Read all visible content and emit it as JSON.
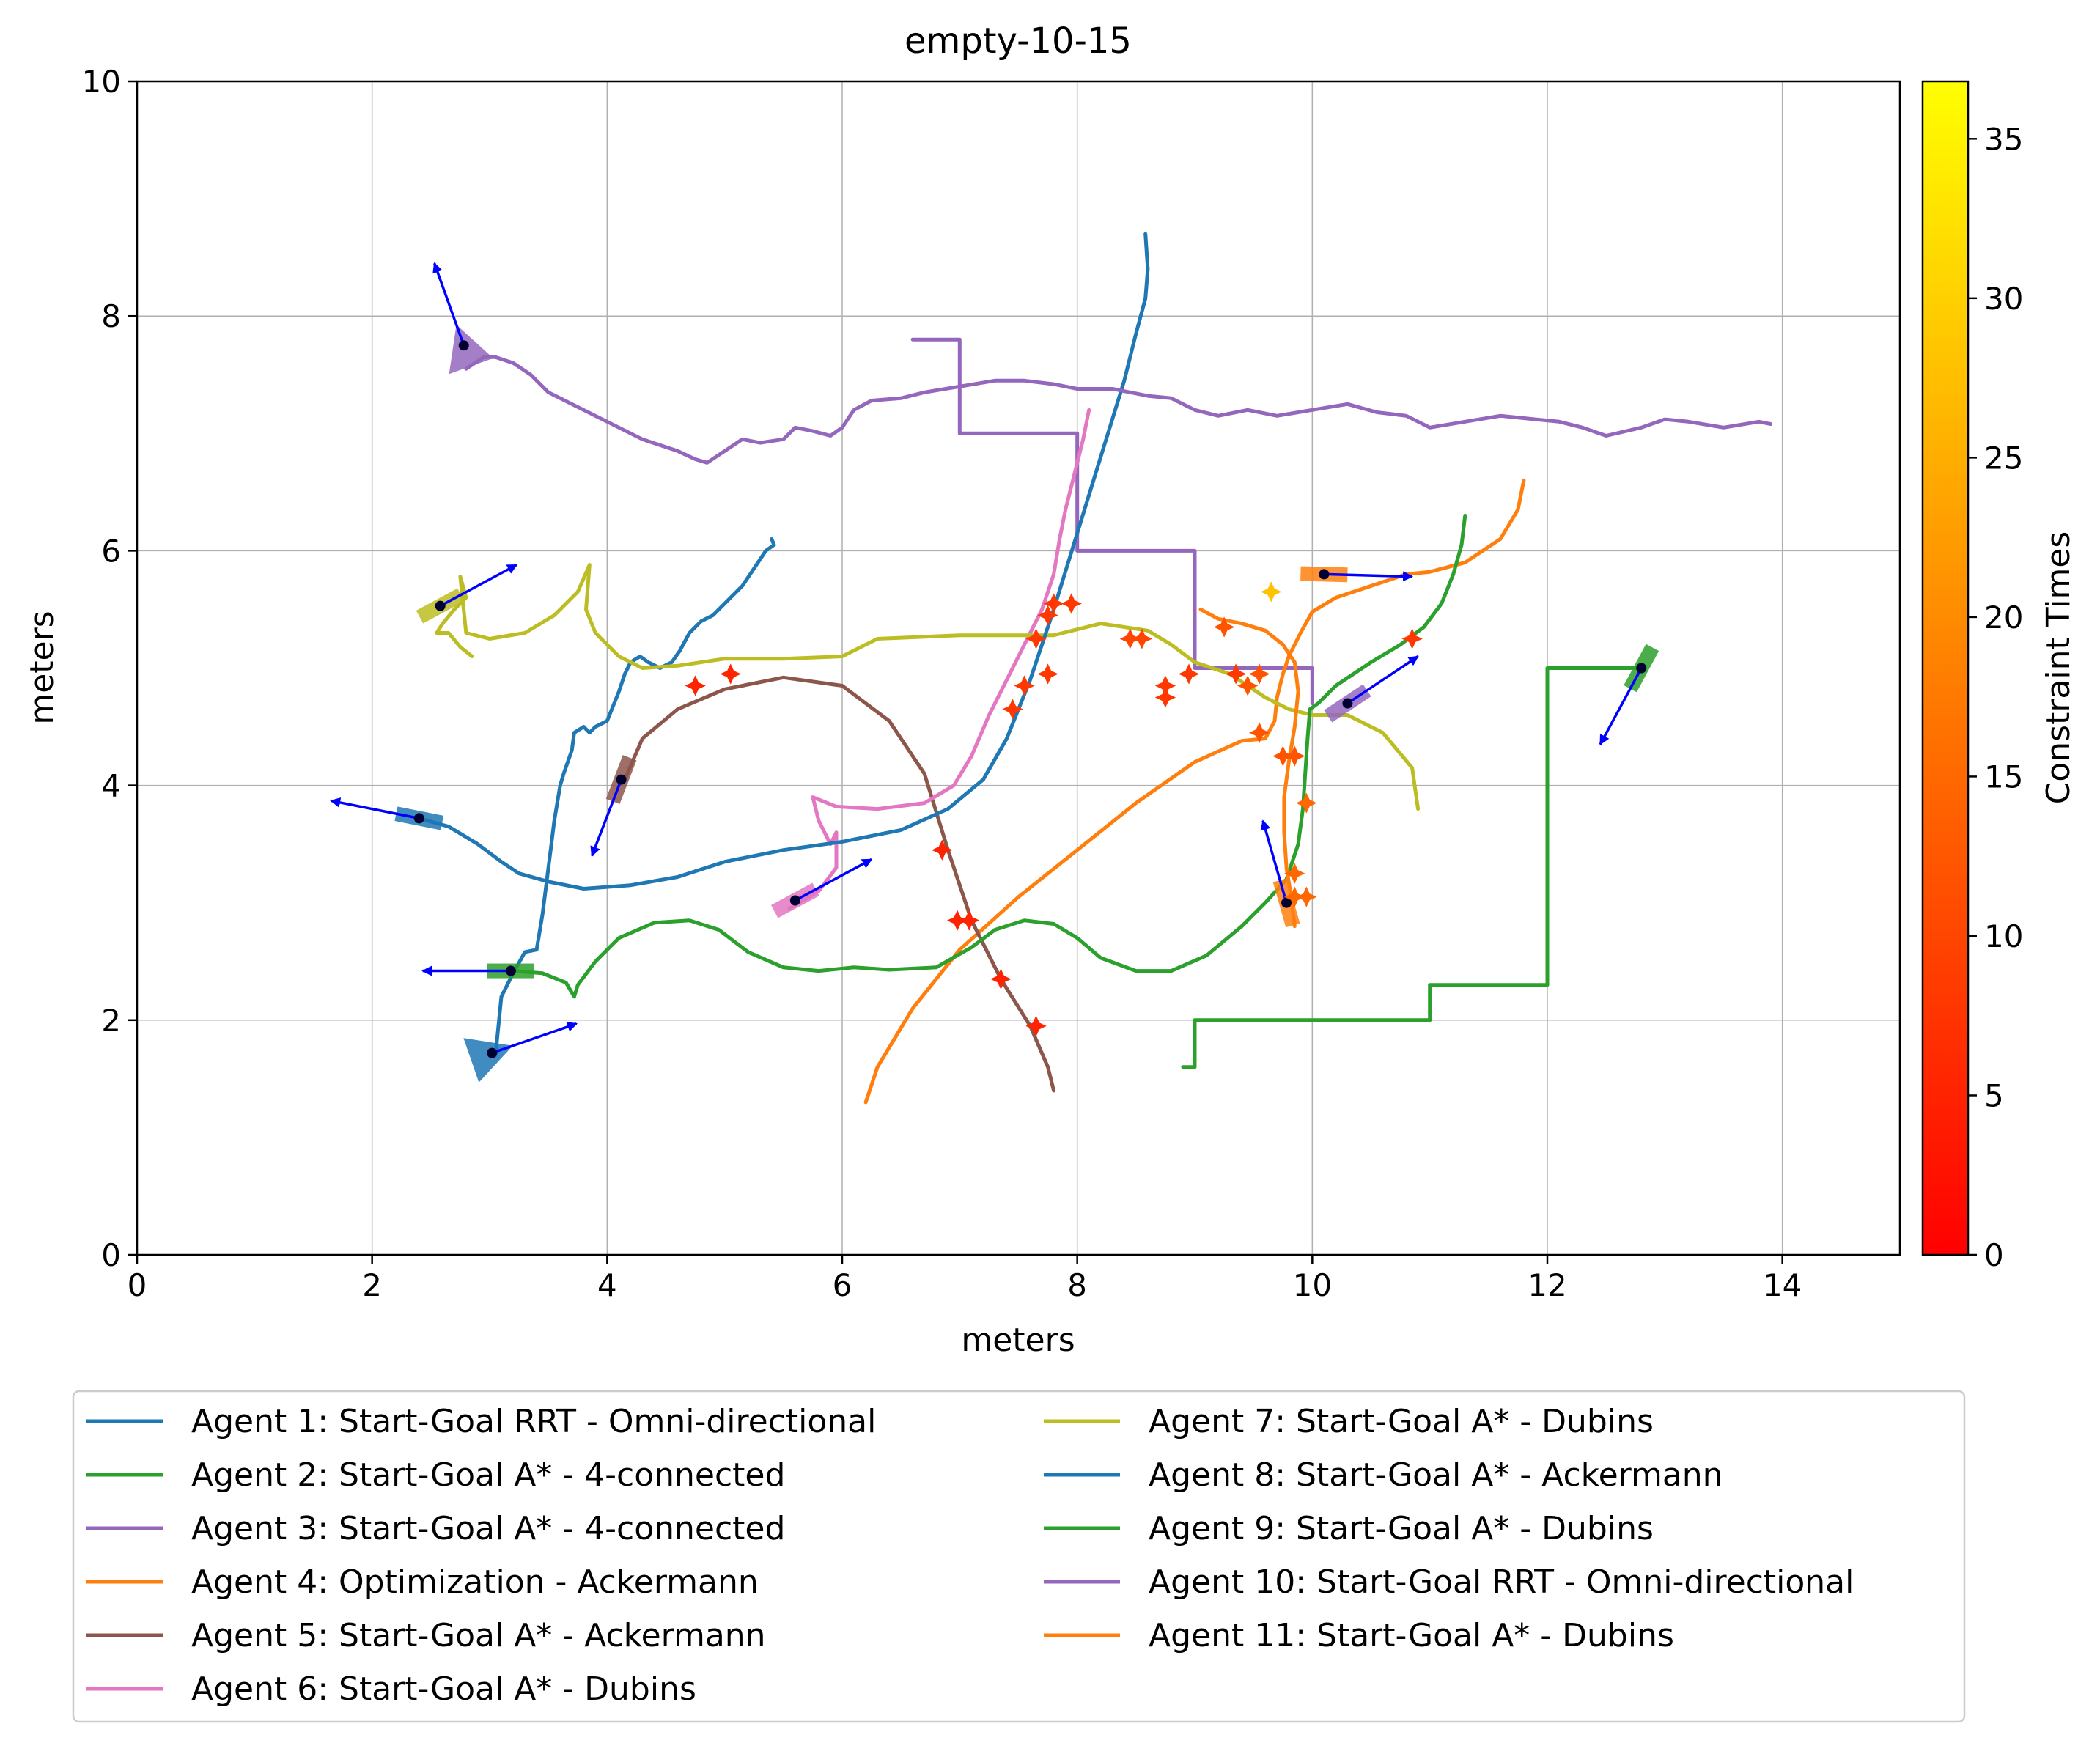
{
  "chart_data": {
    "type": "line",
    "title": "empty-10-15",
    "xlabel": "meters",
    "ylabel": "meters",
    "xlim": [
      0,
      15
    ],
    "ylim": [
      0,
      10
    ],
    "xticks": [
      0,
      2,
      4,
      6,
      8,
      10,
      12,
      14
    ],
    "yticks": [
      0,
      2,
      4,
      6,
      8,
      10
    ],
    "grid": true,
    "legend_position": "bottom",
    "colorbar": {
      "label": "Constraint Times",
      "range": [
        0,
        36.8
      ],
      "ticks": [
        0,
        5,
        10,
        15,
        20,
        25,
        30,
        35
      ],
      "colors": [
        "#ff0000",
        "#ff8000",
        "#ffff00"
      ]
    },
    "series": [
      {
        "name": "Agent 1: Start-Goal RRT - Omni-directional",
        "color": "#1f77b4",
        "x": [
          3.05,
          3.1,
          3.2,
          3.3,
          3.4,
          3.45,
          3.5,
          3.55,
          3.6,
          3.63,
          3.7,
          3.72,
          3.8,
          3.85,
          3.9,
          4.0,
          4.1,
          4.15,
          4.2,
          4.28,
          4.35,
          4.45,
          4.55,
          4.62,
          4.7,
          4.8,
          4.9,
          5.0,
          5.05,
          5.15,
          5.25,
          5.35,
          5.42,
          5.4
        ],
        "y": [
          1.7,
          2.2,
          2.4,
          2.58,
          2.6,
          2.9,
          3.3,
          3.7,
          4.0,
          4.1,
          4.3,
          4.45,
          4.5,
          4.45,
          4.5,
          4.55,
          4.8,
          4.95,
          5.05,
          5.1,
          5.05,
          5.0,
          5.05,
          5.15,
          5.3,
          5.4,
          5.45,
          5.55,
          5.6,
          5.7,
          5.85,
          6.0,
          6.05,
          6.1
        ]
      },
      {
        "name": "Agent 2: Start-Goal A* - 4-connected",
        "color": "#2ca02c",
        "x": [
          12.8,
          12.0,
          12.0,
          11.0,
          11.0,
          9.0,
          9.0,
          8.9
        ],
        "y": [
          5.0,
          5.0,
          2.3,
          2.3,
          2.0,
          2.0,
          1.6,
          1.6
        ]
      },
      {
        "name": "Agent 3: Start-Goal A* - 4-connected",
        "color": "#9467bd",
        "x": [
          6.6,
          7.0,
          7.0,
          8.0,
          8.0,
          9.0,
          9.0,
          10.0,
          10.0
        ],
        "y": [
          7.8,
          7.8,
          7.0,
          7.0,
          6.0,
          6.0,
          5.0,
          5.0,
          4.7
        ]
      },
      {
        "name": "Agent 4: Optimization - Ackermann",
        "color": "#ff7f0e",
        "x": [
          6.2,
          6.3,
          6.6,
          7.0,
          7.5,
          8.0,
          8.5,
          9.0,
          9.4,
          9.6,
          9.68,
          9.7,
          9.75,
          9.8,
          9.9,
          10.0,
          10.2,
          10.5,
          10.8,
          11.0,
          11.3,
          11.6,
          11.75,
          11.8
        ],
        "y": [
          1.3,
          1.6,
          2.1,
          2.6,
          3.05,
          3.45,
          3.85,
          4.2,
          4.38,
          4.4,
          4.55,
          4.75,
          4.95,
          5.1,
          5.3,
          5.48,
          5.6,
          5.7,
          5.8,
          5.82,
          5.9,
          6.1,
          6.35,
          6.6
        ]
      },
      {
        "name": "Agent 5: Start-Goal A* - Ackermann",
        "color": "#8c564b",
        "x": [
          4.15,
          4.3,
          4.6,
          5.0,
          5.5,
          6.0,
          6.4,
          6.7,
          6.9,
          7.1,
          7.35,
          7.6,
          7.75,
          7.8
        ],
        "y": [
          4.05,
          4.4,
          4.65,
          4.82,
          4.92,
          4.85,
          4.55,
          4.1,
          3.45,
          2.85,
          2.35,
          1.95,
          1.6,
          1.4
        ]
      },
      {
        "name": "Agent 6: Start-Goal A* - Dubins",
        "color": "#e377c2",
        "x": [
          5.55,
          5.8,
          5.95,
          5.95,
          5.9,
          5.8,
          5.75,
          5.95,
          6.3,
          6.7,
          6.95,
          7.1,
          7.25,
          7.4,
          7.55,
          7.7,
          7.8,
          7.85,
          7.9,
          7.95,
          8.0,
          8.05,
          8.1
        ],
        "y": [
          2.95,
          3.1,
          3.3,
          3.6,
          3.5,
          3.7,
          3.9,
          3.82,
          3.8,
          3.85,
          4.0,
          4.25,
          4.6,
          4.9,
          5.2,
          5.5,
          5.8,
          6.1,
          6.35,
          6.55,
          6.75,
          6.95,
          7.2
        ]
      },
      {
        "name": "Agent 7: Start-Goal A* - Dubins",
        "color": "#bcbd22",
        "x": [
          2.85,
          2.75,
          2.65,
          2.55,
          2.6,
          2.7,
          2.8,
          2.75,
          2.8,
          3.0,
          3.3,
          3.55,
          3.75,
          3.85,
          3.82,
          3.9,
          4.1,
          4.3,
          4.6,
          5.0,
          5.5,
          6.0,
          6.3,
          7.0,
          7.5,
          7.8,
          8.2,
          8.6,
          8.8,
          9.0,
          9.3,
          9.6,
          9.8,
          10.0,
          10.3,
          10.6,
          10.85,
          10.9
        ],
        "y": [
          5.1,
          5.18,
          5.3,
          5.3,
          5.38,
          5.5,
          5.6,
          5.78,
          5.3,
          5.25,
          5.3,
          5.45,
          5.65,
          5.88,
          5.5,
          5.3,
          5.1,
          5.0,
          5.02,
          5.08,
          5.08,
          5.1,
          5.25,
          5.28,
          5.28,
          5.28,
          5.38,
          5.32,
          5.2,
          5.05,
          4.95,
          4.75,
          4.65,
          4.6,
          4.6,
          4.45,
          4.15,
          3.8
        ]
      },
      {
        "name": "Agent 8: Start-Goal A* - Ackermann",
        "color": "#1f77b4",
        "x": [
          2.4,
          2.65,
          2.9,
          3.1,
          3.25,
          3.5,
          3.8,
          4.2,
          4.6,
          5.0,
          5.5,
          6.0,
          6.5,
          6.9,
          7.2,
          7.4,
          7.6,
          7.8,
          8.0,
          8.2,
          8.4,
          8.5,
          8.58,
          8.6,
          8.58
        ],
        "y": [
          3.72,
          3.65,
          3.5,
          3.35,
          3.25,
          3.18,
          3.12,
          3.15,
          3.22,
          3.35,
          3.45,
          3.52,
          3.62,
          3.8,
          4.05,
          4.4,
          4.9,
          5.5,
          6.15,
          6.8,
          7.45,
          7.85,
          8.15,
          8.4,
          8.7
        ]
      },
      {
        "name": "Agent 9: Start-Goal A* - Dubins",
        "color": "#2ca02c",
        "x": [
          3.2,
          3.45,
          3.65,
          3.72,
          3.75,
          3.9,
          4.1,
          4.4,
          4.7,
          4.95,
          5.2,
          5.5,
          5.8,
          6.1,
          6.4,
          6.8,
          7.1,
          7.3,
          7.55,
          7.8,
          8.0,
          8.2,
          8.5,
          8.8,
          9.1,
          9.4,
          9.6,
          9.78,
          9.88,
          9.92,
          9.94,
          9.96,
          9.98,
          10.05,
          10.2,
          10.5,
          10.75,
          10.95,
          11.1,
          11.2,
          11.27,
          11.3
        ],
        "y": [
          2.42,
          2.4,
          2.32,
          2.2,
          2.3,
          2.5,
          2.7,
          2.83,
          2.85,
          2.77,
          2.58,
          2.45,
          2.42,
          2.45,
          2.43,
          2.45,
          2.62,
          2.77,
          2.85,
          2.82,
          2.7,
          2.53,
          2.42,
          2.42,
          2.55,
          2.8,
          3.0,
          3.2,
          3.5,
          3.8,
          4.1,
          4.4,
          4.65,
          4.7,
          4.85,
          5.05,
          5.2,
          5.35,
          5.55,
          5.8,
          6.05,
          6.3
        ]
      },
      {
        "name": "Agent 10: Start-Goal RRT - Omni-directional",
        "color": "#9467bd",
        "x": [
          2.8,
          2.95,
          3.05,
          3.2,
          3.35,
          3.5,
          3.7,
          4.0,
          4.3,
          4.6,
          4.75,
          4.85,
          5.0,
          5.15,
          5.3,
          5.5,
          5.6,
          5.75,
          5.9,
          6.0,
          6.1,
          6.25,
          6.5,
          6.7,
          7.0,
          7.3,
          7.55,
          7.8,
          8.0,
          8.3,
          8.6,
          8.8,
          9.0,
          9.2,
          9.45,
          9.7,
          10.0,
          10.3,
          10.55,
          10.8,
          11.0,
          11.3,
          11.6,
          11.9,
          12.1,
          12.3,
          12.5,
          12.8,
          13.0,
          13.2,
          13.5,
          13.8,
          13.9
        ],
        "y": [
          7.55,
          7.65,
          7.65,
          7.6,
          7.5,
          7.35,
          7.25,
          7.1,
          6.95,
          6.85,
          6.78,
          6.75,
          6.85,
          6.95,
          6.92,
          6.95,
          7.05,
          7.02,
          6.98,
          7.05,
          7.2,
          7.28,
          7.3,
          7.35,
          7.4,
          7.45,
          7.45,
          7.42,
          7.38,
          7.38,
          7.32,
          7.3,
          7.2,
          7.15,
          7.2,
          7.15,
          7.2,
          7.25,
          7.18,
          7.15,
          7.05,
          7.1,
          7.15,
          7.12,
          7.1,
          7.05,
          6.98,
          7.05,
          7.12,
          7.1,
          7.05,
          7.1,
          7.08
        ]
      },
      {
        "name": "Agent 11: Start-Goal A* - Dubins",
        "color": "#ff7f0e",
        "x": [
          9.85,
          9.82,
          9.78,
          9.76,
          9.76,
          9.8,
          9.85,
          9.88,
          9.85,
          9.75,
          9.6,
          9.4,
          9.2,
          9.05
        ],
        "y": [
          2.8,
          3.05,
          3.3,
          3.6,
          3.9,
          4.2,
          4.5,
          4.8,
          5.05,
          5.2,
          5.32,
          5.38,
          5.42,
          5.5
        ]
      }
    ],
    "agent_markers": [
      {
        "x": 2.4,
        "y": 3.72,
        "dx": -0.75,
        "dy": 0.15,
        "color": "#1f77b4",
        "shape": "rect"
      },
      {
        "x": 3.02,
        "y": 1.72,
        "dx": 0.72,
        "dy": 0.25,
        "color": "#1f77b4",
        "shape": "tri"
      },
      {
        "x": 3.18,
        "y": 2.42,
        "dx": -0.75,
        "dy": 0.0,
        "color": "#2ca02c",
        "shape": "rect"
      },
      {
        "x": 2.78,
        "y": 7.75,
        "dx": -0.25,
        "dy": 0.7,
        "color": "#9467bd",
        "shape": "tri"
      },
      {
        "x": 2.58,
        "y": 5.53,
        "dx": 0.65,
        "dy": 0.35,
        "color": "#bcbd22",
        "shape": "rect"
      },
      {
        "x": 4.12,
        "y": 4.05,
        "dx": -0.25,
        "dy": -0.65,
        "color": "#8c564b",
        "shape": "rect"
      },
      {
        "x": 5.6,
        "y": 3.02,
        "dx": 0.65,
        "dy": 0.35,
        "color": "#e377c2",
        "shape": "rect"
      },
      {
        "x": 9.78,
        "y": 3.0,
        "dx": -0.2,
        "dy": 0.7,
        "color": "#ff7f0e",
        "shape": "rect"
      },
      {
        "x": 10.1,
        "y": 5.8,
        "dx": 0.75,
        "dy": -0.02,
        "color": "#ff7f0e",
        "shape": "rect"
      },
      {
        "x": 10.3,
        "y": 4.7,
        "dx": 0.6,
        "dy": 0.4,
        "color": "#9467bd",
        "shape": "rect"
      },
      {
        "x": 12.8,
        "y": 5.0,
        "dx": -0.35,
        "dy": -0.65,
        "color": "#2ca02c",
        "shape": "rect"
      }
    ],
    "constraint_points": [
      {
        "x": 4.75,
        "y": 4.85,
        "t": 5
      },
      {
        "x": 5.05,
        "y": 4.95,
        "t": 5
      },
      {
        "x": 6.85,
        "y": 3.45,
        "t": 5
      },
      {
        "x": 6.98,
        "y": 2.85,
        "t": 5
      },
      {
        "x": 7.08,
        "y": 2.85,
        "t": 5
      },
      {
        "x": 7.35,
        "y": 2.35,
        "t": 5
      },
      {
        "x": 7.65,
        "y": 1.95,
        "t": 5
      },
      {
        "x": 7.45,
        "y": 4.65,
        "t": 8
      },
      {
        "x": 7.55,
        "y": 4.85,
        "t": 8
      },
      {
        "x": 7.65,
        "y": 5.25,
        "t": 8
      },
      {
        "x": 7.75,
        "y": 4.95,
        "t": 8
      },
      {
        "x": 7.75,
        "y": 5.45,
        "t": 8
      },
      {
        "x": 7.8,
        "y": 5.55,
        "t": 8
      },
      {
        "x": 7.95,
        "y": 5.55,
        "t": 8
      },
      {
        "x": 8.45,
        "y": 5.25,
        "t": 10
      },
      {
        "x": 8.55,
        "y": 5.25,
        "t": 10
      },
      {
        "x": 8.75,
        "y": 4.75,
        "t": 8
      },
      {
        "x": 8.75,
        "y": 4.85,
        "t": 8
      },
      {
        "x": 8.95,
        "y": 4.95,
        "t": 8
      },
      {
        "x": 9.25,
        "y": 5.35,
        "t": 12
      },
      {
        "x": 9.35,
        "y": 4.95,
        "t": 8
      },
      {
        "x": 9.45,
        "y": 4.85,
        "t": 12
      },
      {
        "x": 9.55,
        "y": 4.95,
        "t": 12
      },
      {
        "x": 9.55,
        "y": 4.45,
        "t": 12
      },
      {
        "x": 9.75,
        "y": 4.25,
        "t": 12
      },
      {
        "x": 9.85,
        "y": 4.25,
        "t": 12
      },
      {
        "x": 9.95,
        "y": 3.85,
        "t": 15
      },
      {
        "x": 9.85,
        "y": 3.25,
        "t": 15
      },
      {
        "x": 9.85,
        "y": 3.05,
        "t": 15
      },
      {
        "x": 9.95,
        "y": 3.05,
        "t": 15
      },
      {
        "x": 10.85,
        "y": 5.25,
        "t": 8
      },
      {
        "x": 9.65,
        "y": 5.65,
        "t": 28
      }
    ]
  }
}
